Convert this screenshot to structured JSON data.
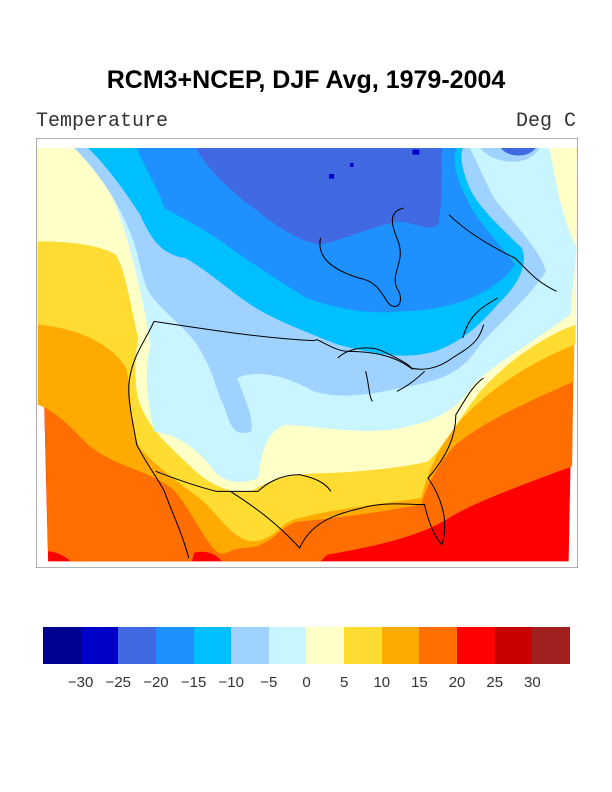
{
  "title": "RCM3+NCEP, DJF Avg, 1979-2004",
  "variable": "Temperature",
  "units": "Deg C",
  "colorbar": {
    "colors": [
      "#000090",
      "#0000c8",
      "#4169e1",
      "#1e90ff",
      "#00bfff",
      "#a0d2ff",
      "#c8f5ff",
      "#ffffc8",
      "#ffdc32",
      "#ffaa00",
      "#ff6e00",
      "#ff0000",
      "#c80000",
      "#a02020"
    ],
    "ticks": [
      "−30",
      "−25",
      "−20",
      "−15",
      "−10",
      "−5",
      "0",
      "5",
      "10",
      "15",
      "20",
      "25",
      "30"
    ]
  },
  "map": {
    "region": "North America",
    "contour_levels": [
      -30,
      -25,
      -20,
      -15,
      -10,
      -5,
      0,
      5,
      10,
      15,
      20,
      25,
      30
    ]
  }
}
